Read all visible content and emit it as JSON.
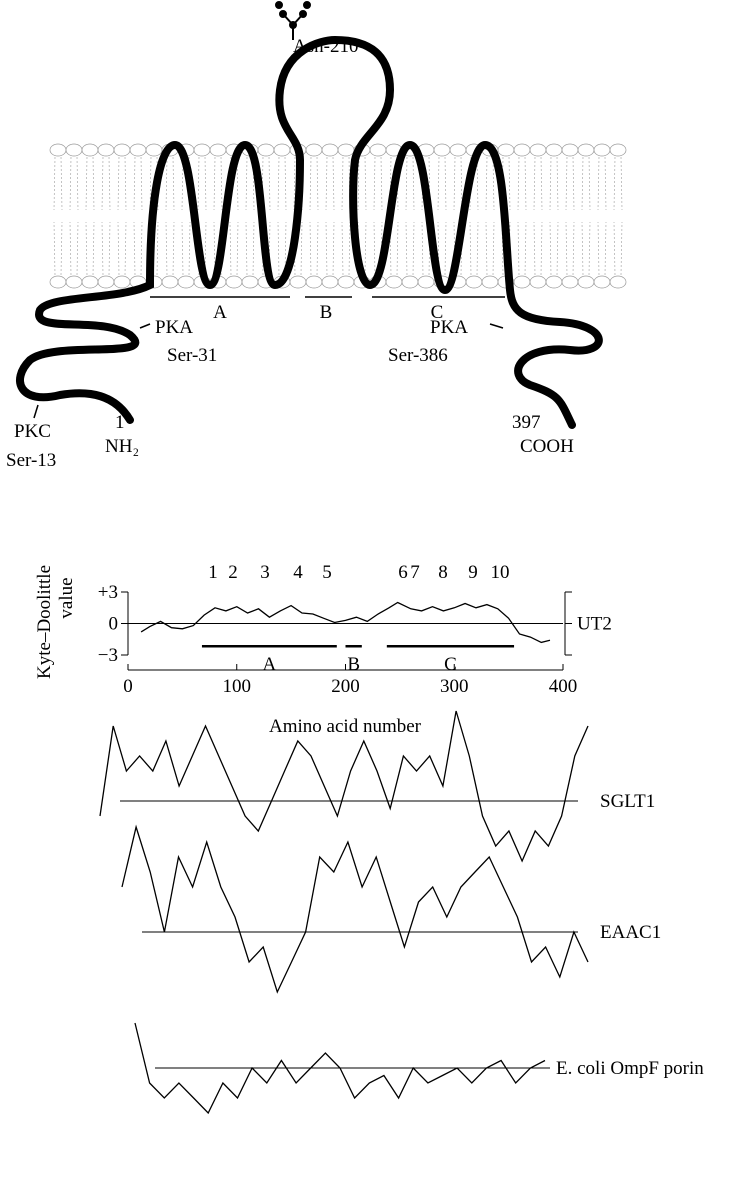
{
  "topology": {
    "glycosylation": "Asn-210",
    "domains": [
      "A",
      "B",
      "C"
    ],
    "n_term": {
      "pka": "PKA",
      "pka_site": "Ser-31",
      "pkc": "PKC",
      "pkc_site": "Ser-13",
      "residue": "1",
      "end": "NH₂"
    },
    "c_term": {
      "pka": "PKA",
      "pka_site": "Ser-386",
      "residue": "397",
      "end": "COOH"
    }
  },
  "chart_data": [
    {
      "type": "line",
      "ylabel": [
        "Kyte–Doolittle",
        "value"
      ],
      "xlabel": "Amino acid number",
      "xlim": [
        0,
        400
      ],
      "xticks": [
        0,
        100,
        200,
        300,
        400
      ],
      "ylim": [
        -3,
        3
      ],
      "yticks": [
        {
          "value": 3,
          "label": "+3"
        },
        0,
        {
          "value": -3,
          "label": "−3"
        }
      ],
      "peaks": [
        "1",
        "2",
        "3",
        "4",
        "5",
        "6",
        "7",
        "8",
        "9",
        "10"
      ],
      "segments": [
        {
          "label": "A",
          "start": 68,
          "end": 192
        },
        {
          "label": "B",
          "start": 200,
          "end": 215
        },
        {
          "label": "C",
          "start": 238,
          "end": 355
        }
      ],
      "series": [
        {
          "name": "UT2",
          "color": "#000000",
          "x": [
            12,
            20,
            30,
            40,
            50,
            60,
            70,
            80,
            90,
            100,
            110,
            120,
            130,
            140,
            150,
            160,
            170,
            180,
            190,
            200,
            210,
            220,
            230,
            240,
            248,
            260,
            270,
            280,
            290,
            300,
            310,
            320,
            330,
            340,
            350,
            360,
            370,
            380,
            388
          ],
          "values": [
            -0.8,
            -0.3,
            0.2,
            -0.4,
            -0.5,
            -0.2,
            0.8,
            1.5,
            1.2,
            1.6,
            1.0,
            1.4,
            0.6,
            1.2,
            1.7,
            1.0,
            0.9,
            0.5,
            0.1,
            0.3,
            0.6,
            0.2,
            0.9,
            1.5,
            2.0,
            1.4,
            1.2,
            1.6,
            1.2,
            1.5,
            1.9,
            1.5,
            1.8,
            1.4,
            0.5,
            -1.0,
            -1.3,
            -1.8,
            -1.6
          ]
        }
      ]
    },
    {
      "type": "profile",
      "series": [
        {
          "name": "SGLT1",
          "color": "#000000",
          "values": [
            -1,
            5,
            2,
            3,
            2,
            4,
            1,
            3,
            5,
            3,
            1,
            -1,
            -2,
            0,
            2,
            4,
            3,
            1,
            -1,
            2,
            4,
            2,
            -0.5,
            3,
            2,
            3,
            1,
            6,
            3,
            -1,
            -3,
            -2,
            -4,
            -2,
            -3,
            -1,
            3,
            5
          ]
        }
      ]
    },
    {
      "type": "profile",
      "series": [
        {
          "name": "EAAC1",
          "color": "#000000",
          "values": [
            3,
            7,
            4,
            0,
            5,
            3,
            6,
            3,
            1,
            -2,
            -1,
            -4,
            -2,
            0,
            5,
            4,
            6,
            3,
            5,
            2,
            -1,
            2,
            3,
            1,
            3,
            4,
            5,
            3,
            1,
            -2,
            -1,
            -3,
            0,
            -2
          ]
        }
      ]
    },
    {
      "type": "profile",
      "series": [
        {
          "name": "E. coli OmpF porin",
          "color": "#000000",
          "values": [
            3,
            -1,
            -2,
            -1,
            -2,
            -3,
            -1,
            -2,
            0,
            -1,
            0.5,
            -1,
            0,
            1,
            0,
            -2,
            -1,
            -0.5,
            -2,
            0,
            -1,
            -0.5,
            0,
            -1,
            0,
            0.5,
            -1,
            0,
            0.5
          ]
        }
      ]
    }
  ]
}
